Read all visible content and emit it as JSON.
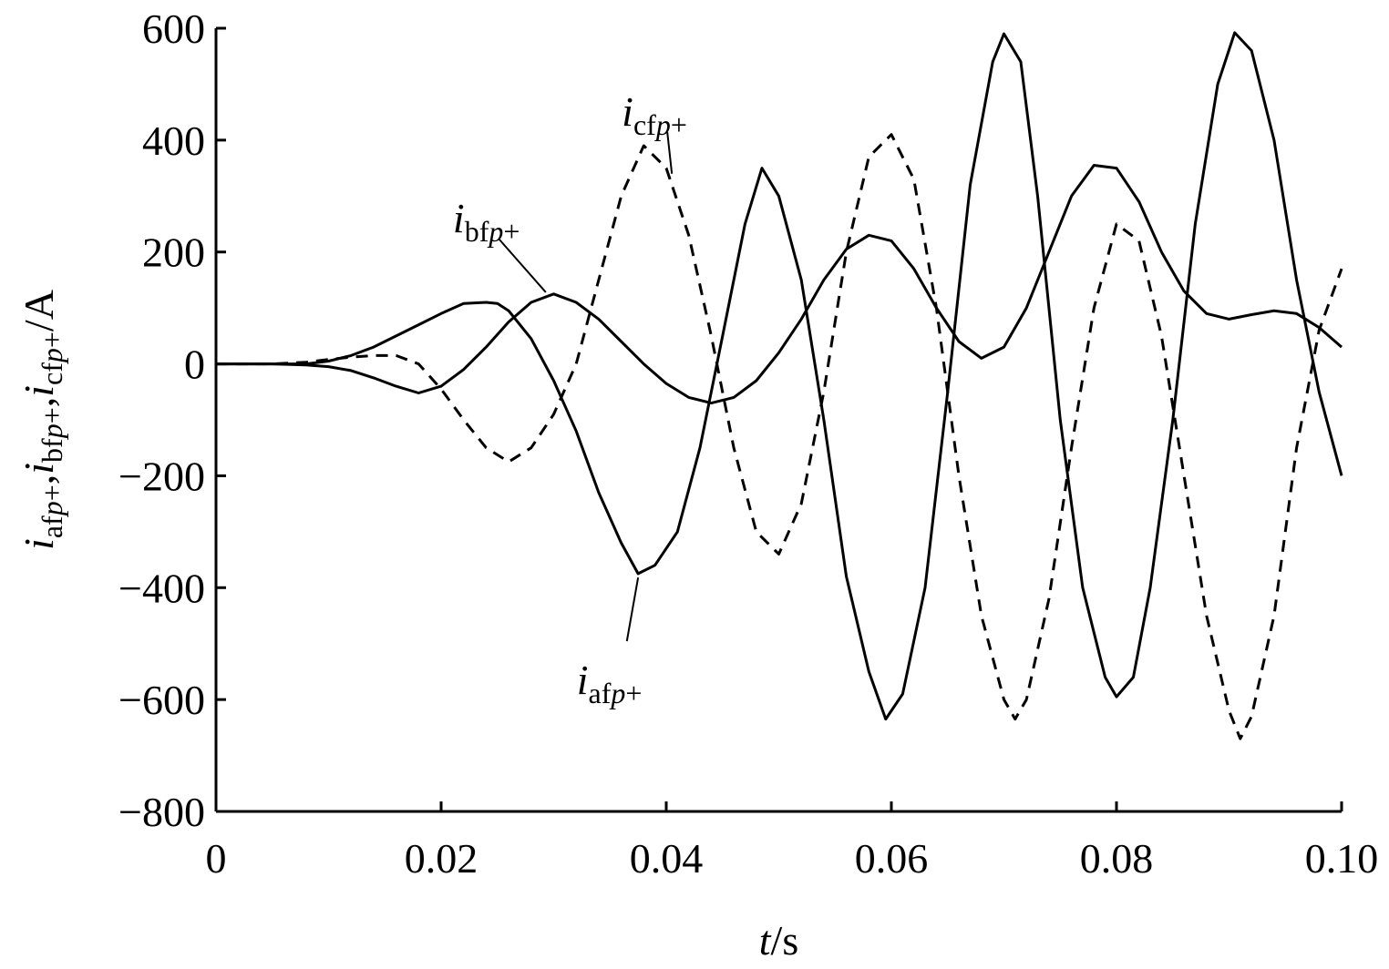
{
  "chart_data": {
    "type": "line",
    "xlabel": {
      "italic": "t",
      "rest": "/s"
    },
    "ylabel": {
      "parts": [
        {
          "t": "i",
          "italic": true,
          "sub": false
        },
        {
          "t": "af",
          "italic": false,
          "sub": true
        },
        {
          "t": "p",
          "italic": true,
          "sub": true
        },
        {
          "t": "+",
          "italic": false,
          "sub": true
        },
        {
          "t": ",",
          "italic": false,
          "sub": false
        },
        {
          "t": "i",
          "italic": true,
          "sub": false
        },
        {
          "t": "bf",
          "italic": false,
          "sub": true
        },
        {
          "t": "p",
          "italic": true,
          "sub": true
        },
        {
          "t": "+",
          "italic": false,
          "sub": true
        },
        {
          "t": ",",
          "italic": false,
          "sub": false
        },
        {
          "t": "i",
          "italic": true,
          "sub": false
        },
        {
          "t": "cf",
          "italic": false,
          "sub": true
        },
        {
          "t": "p",
          "italic": true,
          "sub": true
        },
        {
          "t": "+",
          "italic": false,
          "sub": true
        },
        {
          "t": "/A",
          "italic": false,
          "sub": false
        }
      ]
    },
    "xlim": [
      0,
      0.1
    ],
    "ylim": [
      -800,
      600
    ],
    "xticks": [
      {
        "v": 0,
        "label": "0"
      },
      {
        "v": 0.02,
        "label": "0.02"
      },
      {
        "v": 0.04,
        "label": "0.04"
      },
      {
        "v": 0.06,
        "label": "0.06"
      },
      {
        "v": 0.08,
        "label": "0.08"
      },
      {
        "v": 0.1,
        "label": "0.10"
      }
    ],
    "yticks": [
      {
        "v": 600,
        "label": "600"
      },
      {
        "v": 400,
        "label": "400"
      },
      {
        "v": 200,
        "label": "200"
      },
      {
        "v": 0,
        "label": "0"
      },
      {
        "v": -200,
        "label": "−200"
      },
      {
        "v": -400,
        "label": "−400"
      },
      {
        "v": -600,
        "label": "−600"
      },
      {
        "v": -800,
        "label": "−800"
      }
    ],
    "grid": false,
    "series": [
      {
        "label": {
          "main": "i",
          "sub": "af",
          "subItalic": "p",
          "subSign": "+"
        },
        "style": "solid",
        "color": "#000000",
        "annotation": {
          "text_at": [
            0.0365,
            -525
          ],
          "point_at": [
            0.0375,
            -382
          ]
        },
        "points": [
          [
            0,
            0
          ],
          [
            0.005,
            0
          ],
          [
            0.008,
            0
          ],
          [
            0.01,
            5
          ],
          [
            0.012,
            15
          ],
          [
            0.014,
            30
          ],
          [
            0.016,
            50
          ],
          [
            0.018,
            70
          ],
          [
            0.02,
            90
          ],
          [
            0.022,
            108
          ],
          [
            0.024,
            110
          ],
          [
            0.025,
            108
          ],
          [
            0.026,
            95
          ],
          [
            0.028,
            45
          ],
          [
            0.03,
            -30
          ],
          [
            0.032,
            -120
          ],
          [
            0.034,
            -230
          ],
          [
            0.036,
            -320
          ],
          [
            0.0375,
            -375
          ],
          [
            0.039,
            -360
          ],
          [
            0.041,
            -300
          ],
          [
            0.043,
            -150
          ],
          [
            0.045,
            50
          ],
          [
            0.047,
            250
          ],
          [
            0.0485,
            350
          ],
          [
            0.05,
            300
          ],
          [
            0.052,
            150
          ],
          [
            0.054,
            -100
          ],
          [
            0.056,
            -380
          ],
          [
            0.058,
            -550
          ],
          [
            0.0595,
            -635
          ],
          [
            0.061,
            -590
          ],
          [
            0.063,
            -400
          ],
          [
            0.065,
            -50
          ],
          [
            0.067,
            320
          ],
          [
            0.069,
            540
          ],
          [
            0.07,
            590
          ],
          [
            0.0715,
            540
          ],
          [
            0.073,
            300
          ],
          [
            0.075,
            -100
          ],
          [
            0.077,
            -400
          ],
          [
            0.079,
            -560
          ],
          [
            0.08,
            -595
          ],
          [
            0.0815,
            -560
          ],
          [
            0.083,
            -400
          ],
          [
            0.085,
            -100
          ],
          [
            0.087,
            250
          ],
          [
            0.089,
            500
          ],
          [
            0.0905,
            592
          ],
          [
            0.092,
            560
          ],
          [
            0.094,
            400
          ],
          [
            0.096,
            150
          ],
          [
            0.098,
            -50
          ],
          [
            0.1,
            -200
          ]
        ]
      },
      {
        "label": {
          "main": "i",
          "sub": "bf",
          "subItalic": "p",
          "subSign": "+"
        },
        "style": "solid",
        "color": "#000000",
        "annotation": {
          "text_at": [
            0.0255,
            260
          ],
          "point_at": [
            0.0293,
            128
          ]
        },
        "points": [
          [
            0,
            0
          ],
          [
            0.005,
            0
          ],
          [
            0.008,
            -2
          ],
          [
            0.01,
            -5
          ],
          [
            0.012,
            -12
          ],
          [
            0.014,
            -25
          ],
          [
            0.016,
            -40
          ],
          [
            0.018,
            -52
          ],
          [
            0.02,
            -40
          ],
          [
            0.022,
            -10
          ],
          [
            0.024,
            30
          ],
          [
            0.026,
            75
          ],
          [
            0.028,
            110
          ],
          [
            0.03,
            125
          ],
          [
            0.032,
            110
          ],
          [
            0.034,
            80
          ],
          [
            0.036,
            40
          ],
          [
            0.038,
            0
          ],
          [
            0.04,
            -35
          ],
          [
            0.042,
            -60
          ],
          [
            0.044,
            -70
          ],
          [
            0.046,
            -60
          ],
          [
            0.048,
            -30
          ],
          [
            0.05,
            20
          ],
          [
            0.052,
            80
          ],
          [
            0.054,
            150
          ],
          [
            0.056,
            205
          ],
          [
            0.058,
            230
          ],
          [
            0.06,
            220
          ],
          [
            0.062,
            170
          ],
          [
            0.064,
            100
          ],
          [
            0.066,
            40
          ],
          [
            0.068,
            10
          ],
          [
            0.07,
            30
          ],
          [
            0.072,
            100
          ],
          [
            0.074,
            200
          ],
          [
            0.076,
            300
          ],
          [
            0.078,
            355
          ],
          [
            0.08,
            350
          ],
          [
            0.082,
            290
          ],
          [
            0.084,
            200
          ],
          [
            0.086,
            130
          ],
          [
            0.088,
            90
          ],
          [
            0.09,
            80
          ],
          [
            0.092,
            88
          ],
          [
            0.094,
            95
          ],
          [
            0.096,
            90
          ],
          [
            0.098,
            65
          ],
          [
            0.1,
            30
          ]
        ]
      },
      {
        "label": {
          "main": "i",
          "sub": "cf",
          "subItalic": "p",
          "subSign": "+"
        },
        "style": "dashed",
        "color": "#000000",
        "annotation": {
          "text_at": [
            0.0405,
            450
          ],
          "point_at": [
            0.0405,
            340
          ]
        },
        "points": [
          [
            0,
            0
          ],
          [
            0.005,
            0
          ],
          [
            0.008,
            3
          ],
          [
            0.01,
            8
          ],
          [
            0.012,
            12
          ],
          [
            0.014,
            15
          ],
          [
            0.016,
            15
          ],
          [
            0.018,
            0
          ],
          [
            0.02,
            -45
          ],
          [
            0.022,
            -100
          ],
          [
            0.024,
            -150
          ],
          [
            0.026,
            -175
          ],
          [
            0.028,
            -150
          ],
          [
            0.03,
            -90
          ],
          [
            0.032,
            0
          ],
          [
            0.034,
            150
          ],
          [
            0.036,
            300
          ],
          [
            0.038,
            390
          ],
          [
            0.04,
            350
          ],
          [
            0.042,
            230
          ],
          [
            0.044,
            50
          ],
          [
            0.046,
            -150
          ],
          [
            0.048,
            -300
          ],
          [
            0.05,
            -340
          ],
          [
            0.052,
            -250
          ],
          [
            0.054,
            -50
          ],
          [
            0.056,
            200
          ],
          [
            0.058,
            370
          ],
          [
            0.06,
            410
          ],
          [
            0.062,
            330
          ],
          [
            0.064,
            100
          ],
          [
            0.066,
            -200
          ],
          [
            0.068,
            -450
          ],
          [
            0.07,
            -600
          ],
          [
            0.071,
            -635
          ],
          [
            0.072,
            -600
          ],
          [
            0.074,
            -420
          ],
          [
            0.076,
            -150
          ],
          [
            0.078,
            100
          ],
          [
            0.08,
            250
          ],
          [
            0.082,
            220
          ],
          [
            0.084,
            50
          ],
          [
            0.086,
            -200
          ],
          [
            0.088,
            -450
          ],
          [
            0.09,
            -620
          ],
          [
            0.091,
            -670
          ],
          [
            0.092,
            -630
          ],
          [
            0.094,
            -450
          ],
          [
            0.096,
            -150
          ],
          [
            0.098,
            60
          ],
          [
            0.1,
            170
          ]
        ]
      }
    ]
  }
}
